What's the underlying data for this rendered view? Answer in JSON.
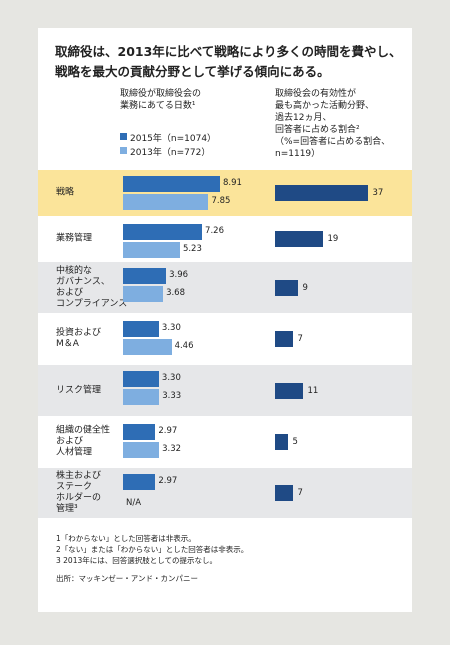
{
  "title": "取締役は、2013年に比べて戦略により多くの時間を費やし、\n戦略を最大の貢献分野として挙げる傾向にある。",
  "chart_data": [
    {
      "type": "bar",
      "title": "取締役が取締役会の\n業務にあてる日数¹",
      "categories": [
        "戦略",
        "業務管理",
        "中核的な\nガバナンス、\nおよび\nコンプライアンス",
        "投資および\nM＆A",
        "リスク管理",
        "組織の健全性\nおよび\n人材管理",
        "株主および\nステーク\nホルダーの\n管理³"
      ],
      "series": [
        {
          "name": "2015年（n=1074）",
          "color": "#2e6db5",
          "values": [
            8.91,
            7.26,
            3.96,
            3.3,
            3.3,
            2.97,
            2.97
          ],
          "value_labels": [
            "8.91",
            "7.26",
            "3.96",
            "3.30",
            "3.30",
            "2.97",
            "2.97"
          ]
        },
        {
          "name": "2013年（n=772）",
          "color": "#7eaee0",
          "values": [
            7.85,
            5.23,
            3.68,
            4.46,
            3.33,
            3.32,
            null
          ],
          "value_labels": [
            "7.85",
            "5.23",
            "3.68",
            "4.46",
            "3.33",
            "3.32",
            "N/A"
          ]
        }
      ],
      "xlim": [
        0,
        9
      ]
    },
    {
      "type": "bar",
      "title": "取締役会の有効性が\n最も高かった活動分野、\n過去12ヵ月、\n回答者に占める割合²\n（%=回答者に占める割合、\n n=1119）",
      "color": "#1f4a85",
      "values": [
        37,
        19,
        9,
        7,
        11,
        5,
        7
      ],
      "xlim": [
        0,
        40
      ]
    }
  ],
  "notes": [
    "1「わからない」とした回答者は非表示。",
    "2「ない」または「わからない」とした回答者は非表示。",
    "3 2013年には、回答選択肢としての提示なし。"
  ],
  "source": "出所：マッキンゼー・アンド・カンパニー"
}
